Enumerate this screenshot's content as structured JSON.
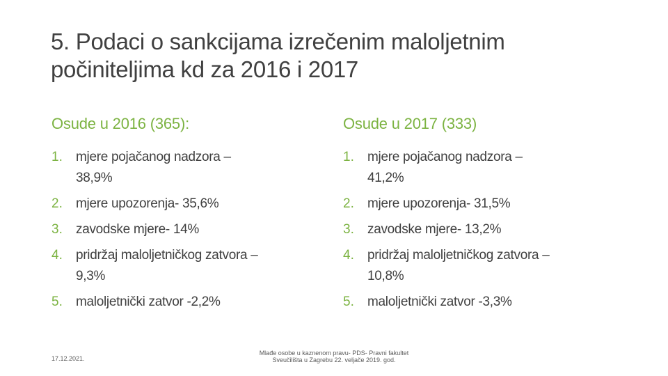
{
  "title": {
    "lines": [
      "5. Podaci o sankcijama izrečenim maloljetnim",
      "počiniteljima kd za 2016 i 2017"
    ]
  },
  "columns": [
    {
      "heading": "Osude u 2016 (365):",
      "items": [
        {
          "number": "1.",
          "lines": [
            "mjere pojačanog nadzora –",
            "38,9%"
          ]
        },
        {
          "number": "2.",
          "lines": [
            "mjere upozorenja- 35,6%"
          ]
        },
        {
          "number": "3.",
          "lines": [
            "zavodske mjere- 14%"
          ]
        },
        {
          "number": "4.",
          "lines": [
            "pridržaj maloljetničkog zatvora –",
            "9,3%"
          ]
        },
        {
          "number": "5.",
          "lines": [
            "maloljetnički zatvor -2,2%"
          ]
        }
      ]
    },
    {
      "heading": "Osude u 2017 (333)",
      "items": [
        {
          "number": "1.",
          "lines": [
            "mjere pojačanog nadzora –",
            "41,2%"
          ]
        },
        {
          "number": "2.",
          "lines": [
            "mjere upozorenja- 31,5%"
          ]
        },
        {
          "number": "3.",
          "lines": [
            "zavodske mjere- 13,2%"
          ]
        },
        {
          "number": "4.",
          "lines": [
            "pridržaj maloljetničkog zatvora –",
            "10,8%"
          ]
        },
        {
          "number": "5.",
          "lines": [
            "maloljetnički zatvor -3,3%"
          ]
        }
      ]
    }
  ],
  "footer": {
    "date": "17.12.2021.",
    "center": [
      "Mlađe osobe u kaznenom pravu- PDS- Pravni fakultet",
      "Sveučilišta u Zagrebu 22. veljače 2019. god."
    ]
  }
}
